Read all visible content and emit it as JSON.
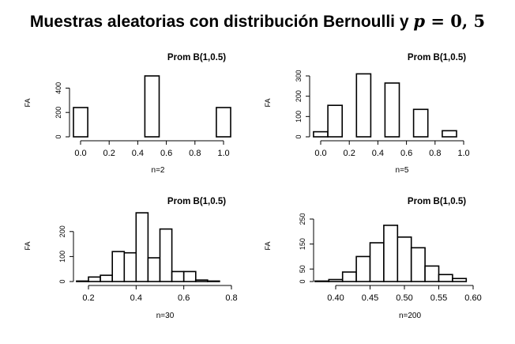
{
  "page": {
    "title_text": "Muestras aleatorias con distribución Bernoulli y ",
    "title_var": "p",
    "title_value": " = 0, 5"
  },
  "chart_data": [
    {
      "type": "bar",
      "title": "Prom B(1,0.5)",
      "xlabel": "n=2",
      "ylabel": "FA",
      "bin_edges": [
        -0.05,
        0.05,
        0.45,
        0.55,
        0.95,
        1.05
      ],
      "values": [
        240,
        0,
        500,
        0,
        240
      ],
      "xlim": [
        0.0,
        1.0
      ],
      "ylim": [
        0,
        500
      ],
      "xticks": [
        0.0,
        0.2,
        0.4,
        0.6,
        0.8,
        1.0
      ],
      "xtick_labels": [
        "0.0",
        "0.2",
        "0.4",
        "0.6",
        "0.8",
        "1.0"
      ],
      "yticks": [
        0,
        200,
        400
      ],
      "ytick_labels": [
        "0",
        "200",
        "400"
      ]
    },
    {
      "type": "bar",
      "title": "Prom B(1,0.5)",
      "xlabel": "n=5",
      "ylabel": "FA",
      "bin_edges": [
        -0.05,
        0.05,
        0.15,
        0.25,
        0.35,
        0.45,
        0.55,
        0.65,
        0.75,
        0.85,
        0.95,
        1.05
      ],
      "values": [
        25,
        155,
        0,
        310,
        0,
        265,
        0,
        135,
        0,
        30,
        0
      ],
      "xlim": [
        0.0,
        1.0
      ],
      "ylim": [
        0,
        300
      ],
      "xticks": [
        0.0,
        0.2,
        0.4,
        0.6,
        0.8,
        1.0
      ],
      "xtick_labels": [
        "0.0",
        "0.2",
        "0.4",
        "0.6",
        "0.8",
        "1.0"
      ],
      "yticks": [
        0,
        100,
        200,
        300
      ],
      "ytick_labels": [
        "0",
        "100",
        "200",
        "300"
      ]
    },
    {
      "type": "bar",
      "title": "Prom B(1,0.5)",
      "xlabel": "n=30",
      "ylabel": "FA",
      "bin_edges": [
        0.15,
        0.2,
        0.25,
        0.3,
        0.35,
        0.4,
        0.45,
        0.5,
        0.55,
        0.6,
        0.65,
        0.7,
        0.75,
        0.8
      ],
      "values": [
        2,
        18,
        25,
        120,
        115,
        275,
        95,
        210,
        40,
        40,
        6,
        2,
        0
      ],
      "xlim": [
        0.2,
        0.8
      ],
      "ylim": [
        0,
        250
      ],
      "xticks": [
        0.2,
        0.4,
        0.6,
        0.8
      ],
      "xtick_labels": [
        "0.2",
        "0.4",
        "0.6",
        "0.8"
      ],
      "yticks": [
        0,
        100,
        200
      ],
      "ytick_labels": [
        "0",
        "100",
        "200"
      ]
    },
    {
      "type": "bar",
      "title": "Prom B(1,0.5)",
      "xlabel": "n=200",
      "ylabel": "FA",
      "bin_edges": [
        0.37,
        0.39,
        0.41,
        0.43,
        0.45,
        0.47,
        0.49,
        0.51,
        0.53,
        0.55,
        0.57,
        0.59
      ],
      "values": [
        2,
        8,
        38,
        100,
        155,
        225,
        178,
        135,
        62,
        28,
        12
      ],
      "xlim": [
        0.4,
        0.6
      ],
      "ylim": [
        0,
        250
      ],
      "xticks": [
        0.4,
        0.45,
        0.5,
        0.55,
        0.6
      ],
      "xtick_labels": [
        "0.40",
        "0.45",
        "0.50",
        "0.55",
        "0.60"
      ],
      "yticks": [
        0,
        50,
        150,
        250
      ],
      "ytick_labels": [
        "0",
        "50",
        "150",
        "250"
      ]
    }
  ]
}
